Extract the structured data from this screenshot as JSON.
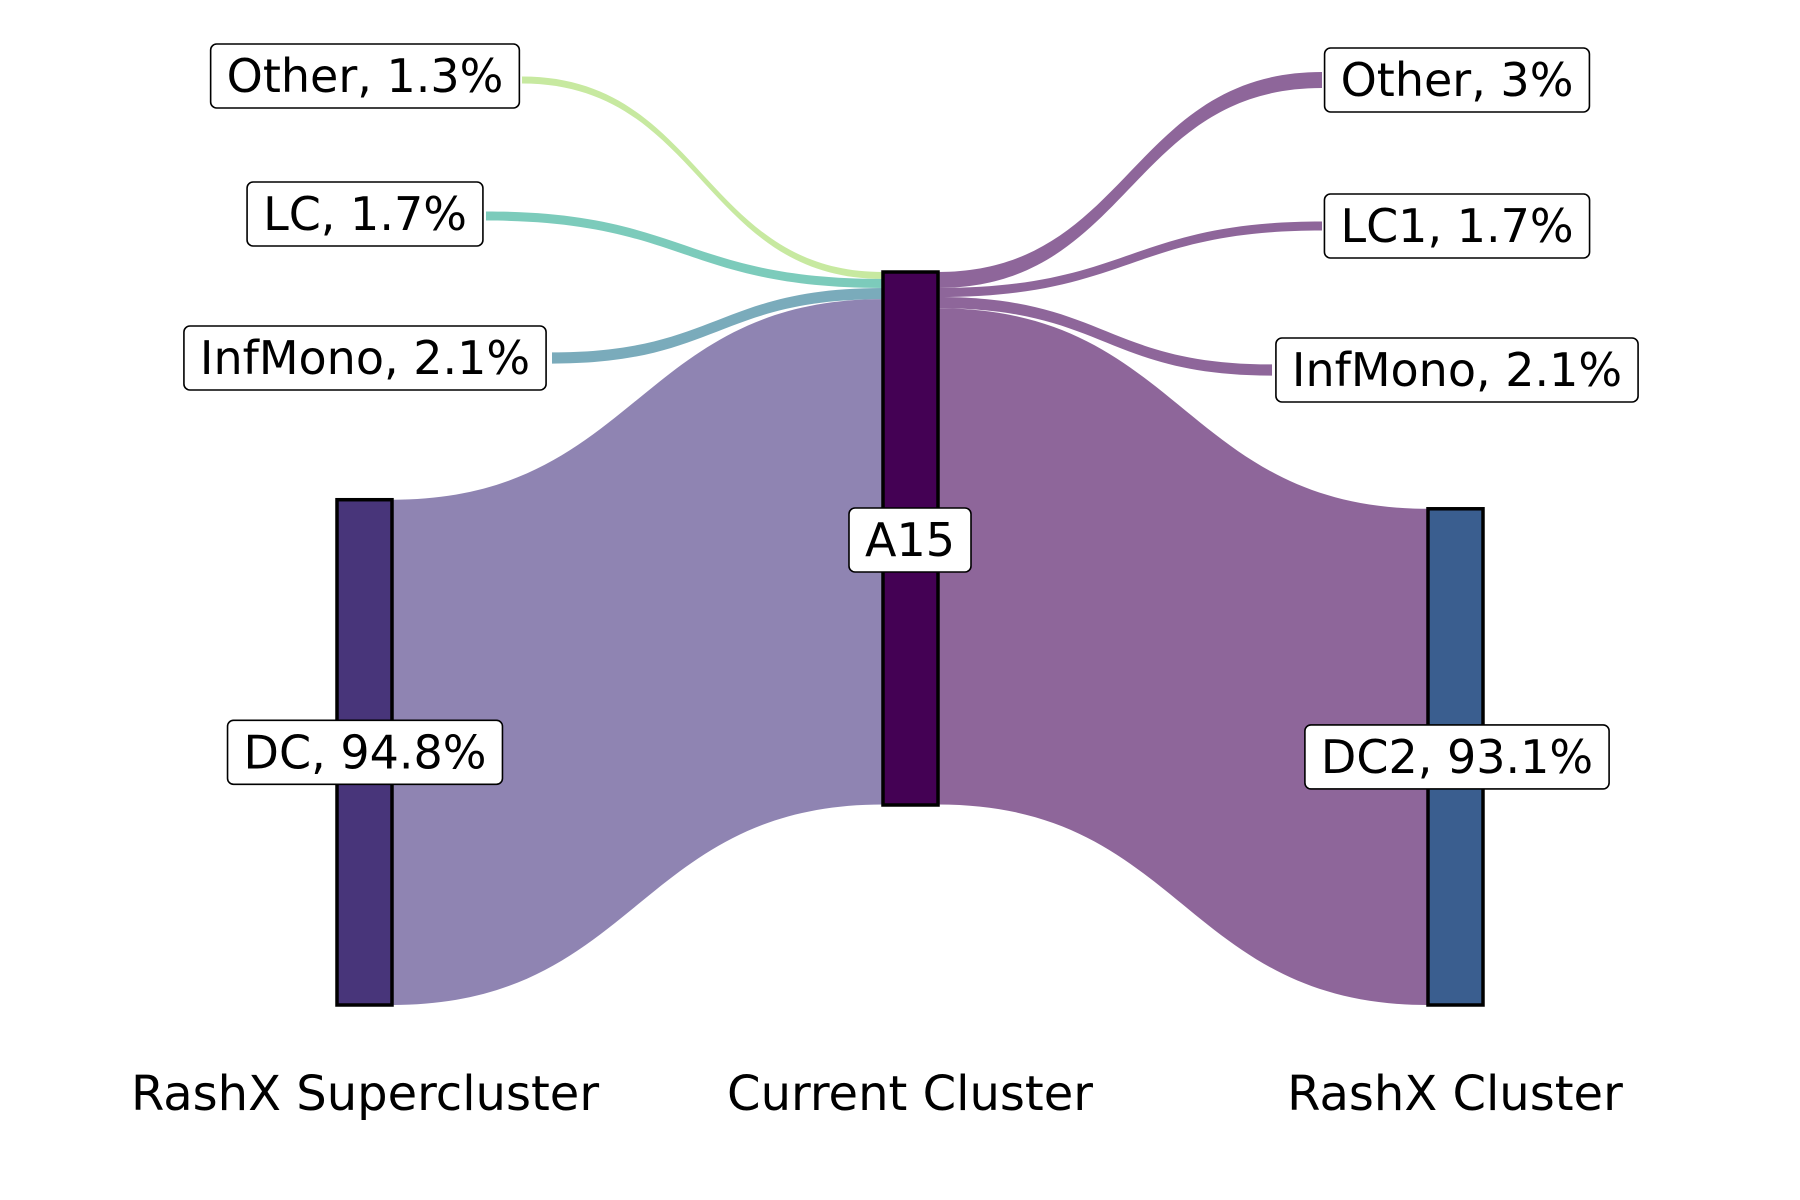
{
  "chart_data": {
    "type": "sankey",
    "columns": [
      "RashX Supercluster",
      "Current Cluster",
      "RashX Cluster"
    ],
    "center": {
      "label": "A15",
      "color": "#440154"
    },
    "sources": [
      {
        "label": "Other, 1.3%",
        "value": 1.3,
        "color": "#c7e9a0"
      },
      {
        "label": "LC, 1.7%",
        "value": 1.7,
        "color": "#7ccbbb"
      },
      {
        "label": "InfMono, 2.1%",
        "value": 2.1,
        "color": "#7aabbb"
      },
      {
        "label": "DC, 94.8%",
        "value": 94.8,
        "color": "#8f84b2",
        "bar_color": "#48357a"
      }
    ],
    "targets": [
      {
        "label": "Other, 3%",
        "value": 3.0,
        "color": "#8e669a"
      },
      {
        "label": "LC1, 1.7%",
        "value": 1.7,
        "color": "#8e669a"
      },
      {
        "label": "InfMono, 2.1%",
        "value": 2.1,
        "color": "#8e669a"
      },
      {
        "label": "DC2, 93.1%",
        "value": 93.1,
        "color": "#8e669a",
        "bar_color": "#3a5e8f"
      }
    ]
  }
}
